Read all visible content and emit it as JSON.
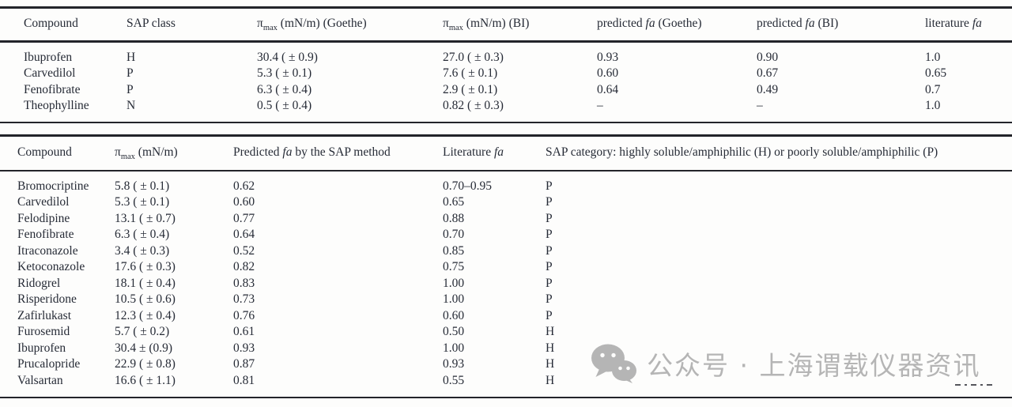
{
  "page": {
    "background": "#fdfdfc",
    "text_color": "#262b36",
    "rule_color": "#23242a",
    "watermark_color": "#b5b5b5"
  },
  "table1": {
    "headers": {
      "compound": "Compound",
      "sap_class": "SAP class",
      "pi": "π",
      "pi_sub": "max",
      "pi_goethe_unit": " (mN/m) (Goethe)",
      "pi_bi_unit": " (mN/m) (BI)",
      "predicted_pre": "predicted ",
      "fa_italic": "fa",
      "goethe_suffix": " (Goethe)",
      "bi_suffix": " (BI)",
      "literature_pre": "literature "
    },
    "rows": [
      {
        "compound": "Ibuprofen",
        "sap_class": "H",
        "pi_goethe": "30.4 ( ± 0.9)",
        "pi_bi": "27.0 ( ± 0.3)",
        "fa_goethe": "0.93",
        "fa_bi": "0.90",
        "fa_lit": "1.0"
      },
      {
        "compound": "Carvedilol",
        "sap_class": "P",
        "pi_goethe": "5.3 ( ± 0.1)",
        "pi_bi": "7.6 ( ± 0.1)",
        "fa_goethe": "0.60",
        "fa_bi": "0.67",
        "fa_lit": "0.65"
      },
      {
        "compound": "Fenofibrate",
        "sap_class": "P",
        "pi_goethe": "6.3 ( ± 0.4)",
        "pi_bi": "2.9 ( ± 0.1)",
        "fa_goethe": "0.64",
        "fa_bi": "0.49",
        "fa_lit": "0.7"
      },
      {
        "compound": "Theophylline",
        "sap_class": "N",
        "pi_goethe": "0.5 ( ± 0.4)",
        "pi_bi": "0.82 ( ± 0.3)",
        "fa_goethe": "–",
        "fa_bi": "–",
        "fa_lit": "1.0"
      }
    ]
  },
  "table2": {
    "headers": {
      "compound": "Compound",
      "pi": "π",
      "pi_sub": "max",
      "pi_unit": " (mN/m)",
      "predicted_pre": "Predicted ",
      "fa_italic": "fa",
      "predicted_post": " by the SAP method",
      "literature_pre": "Literature ",
      "sap_category": "SAP category: highly soluble/amphiphilic (H) or poorly soluble/amphiphilic (P)"
    },
    "rows": [
      {
        "compound": "Bromocriptine",
        "pi_max": "5.8 ( ± 0.1)",
        "fa_pred": "0.62",
        "fa_lit": "0.70–0.95",
        "sap": "P"
      },
      {
        "compound": "Carvedilol",
        "pi_max": "5.3 ( ± 0.1)",
        "fa_pred": "0.60",
        "fa_lit": "0.65",
        "sap": "P"
      },
      {
        "compound": "Felodipine",
        "pi_max": "13.1 ( ± 0.7)",
        "fa_pred": "0.77",
        "fa_lit": "0.88",
        "sap": "P"
      },
      {
        "compound": "Fenofibrate",
        "pi_max": "6.3 ( ± 0.4)",
        "fa_pred": "0.64",
        "fa_lit": "0.70",
        "sap": "P"
      },
      {
        "compound": "Itraconazole",
        "pi_max": "3.4 ( ± 0.3)",
        "fa_pred": "0.52",
        "fa_lit": "0.85",
        "sap": "P"
      },
      {
        "compound": "Ketoconazole",
        "pi_max": "17.6 ( ± 0.3)",
        "fa_pred": "0.82",
        "fa_lit": "0.75",
        "sap": "P"
      },
      {
        "compound": "Ridogrel",
        "pi_max": "18.1 ( ± 0.4)",
        "fa_pred": "0.83",
        "fa_lit": "1.00",
        "sap": "P"
      },
      {
        "compound": "Risperidone",
        "pi_max": "10.5 ( ± 0.6)",
        "fa_pred": "0.73",
        "fa_lit": "1.00",
        "sap": "P"
      },
      {
        "compound": "Zafirlukast",
        "pi_max": "12.3 ( ± 0.4)",
        "fa_pred": "0.76",
        "fa_lit": "0.60",
        "sap": "P"
      },
      {
        "compound": "Furosemid",
        "pi_max": "5.7 ( ± 0.2)",
        "fa_pred": "0.61",
        "fa_lit": "0.50",
        "sap": "H"
      },
      {
        "compound": "Ibuprofen",
        "pi_max": "30.4 ± (0.9)",
        "fa_pred": "0.93",
        "fa_lit": "1.00",
        "sap": "H"
      },
      {
        "compound": "Prucalopride",
        "pi_max": "22.9 ( ± 0.8)",
        "fa_pred": "0.87",
        "fa_lit": "0.93",
        "sap": "H"
      },
      {
        "compound": "Valsartan",
        "pi_max": "16.6 ( ± 1.1)",
        "fa_pred": "0.81",
        "fa_lit": "0.55",
        "sap": "H"
      }
    ]
  },
  "watermark": {
    "icon": "wechat-icon",
    "text": "公众号 · 上海谓载仪器资讯"
  }
}
